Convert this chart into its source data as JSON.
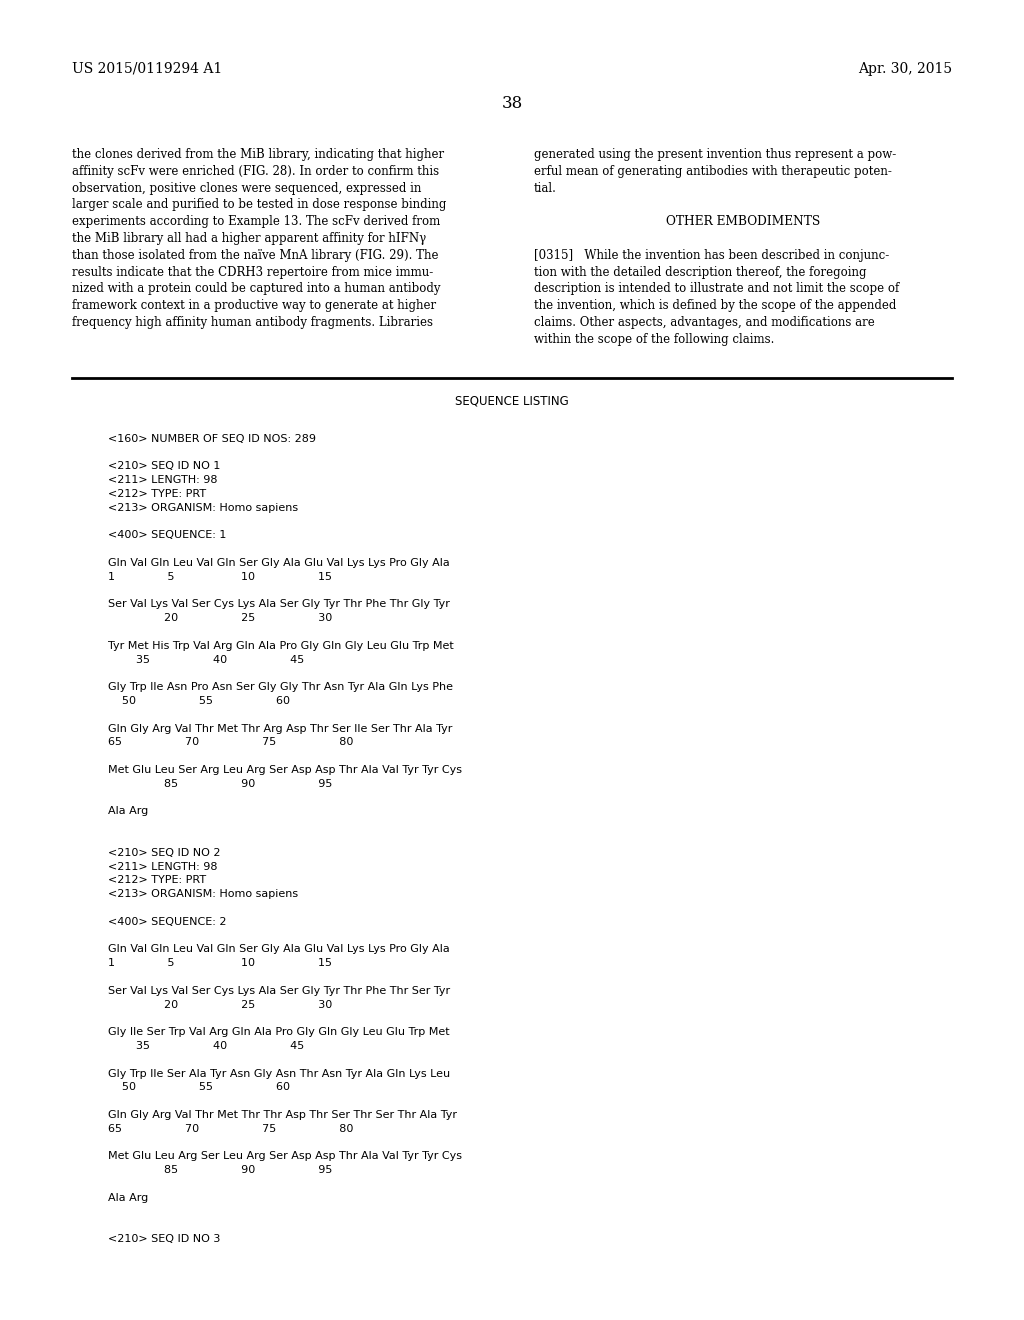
{
  "bg_color": "#ffffff",
  "header_left": "US 2015/0119294 A1",
  "header_right": "Apr. 30, 2015",
  "page_number": "38",
  "left_col_text": [
    "the clones derived from the MiB library, indicating that higher",
    "affinity scFv were enriched (FIG. 28). In order to confirm this",
    "observation, positive clones were sequenced, expressed in",
    "larger scale and purified to be tested in dose response binding",
    "experiments according to Example 13. The scFv derived from",
    "the MiB library all had a higher apparent affinity for hIFNγ",
    "than those isolated from the naïve MnA library (FIG. 29). The",
    "results indicate that the CDRH3 repertoire from mice immu-",
    "nized with a protein could be captured into a human antibody",
    "framework context in a productive way to generate at higher",
    "frequency high affinity human antibody fragments. Libraries"
  ],
  "right_col_text": [
    "generated using the present invention thus represent a pow-",
    "erful mean of generating antibodies with therapeutic poten-",
    "tial.",
    "",
    "OTHER EMBODIMENTS",
    "",
    "[0315]   While the invention has been described in conjunc-",
    "tion with the detailed description thereof, the foregoing",
    "description is intended to illustrate and not limit the scope of",
    "the invention, which is defined by the scope of the appended",
    "claims. Other aspects, advantages, and modifications are",
    "within the scope of the following claims."
  ],
  "seq_listing_title": "SEQUENCE LISTING",
  "seq_lines": [
    "",
    "<160> NUMBER OF SEQ ID NOS: 289",
    "",
    "<210> SEQ ID NO 1",
    "<211> LENGTH: 98",
    "<212> TYPE: PRT",
    "<213> ORGANISM: Homo sapiens",
    "",
    "<400> SEQUENCE: 1",
    "",
    "Gln Val Gln Leu Val Gln Ser Gly Ala Glu Val Lys Lys Pro Gly Ala",
    "1               5                   10                  15",
    "",
    "Ser Val Lys Val Ser Cys Lys Ala Ser Gly Tyr Thr Phe Thr Gly Tyr",
    "                20                  25                  30",
    "",
    "Tyr Met His Trp Val Arg Gln Ala Pro Gly Gln Gly Leu Glu Trp Met",
    "        35                  40                  45",
    "",
    "Gly Trp Ile Asn Pro Asn Ser Gly Gly Thr Asn Tyr Ala Gln Lys Phe",
    "    50                  55                  60",
    "",
    "Gln Gly Arg Val Thr Met Thr Arg Asp Thr Ser Ile Ser Thr Ala Tyr",
    "65                  70                  75                  80",
    "",
    "Met Glu Leu Ser Arg Leu Arg Ser Asp Asp Thr Ala Val Tyr Tyr Cys",
    "                85                  90                  95",
    "",
    "Ala Arg",
    "",
    "",
    "<210> SEQ ID NO 2",
    "<211> LENGTH: 98",
    "<212> TYPE: PRT",
    "<213> ORGANISM: Homo sapiens",
    "",
    "<400> SEQUENCE: 2",
    "",
    "Gln Val Gln Leu Val Gln Ser Gly Ala Glu Val Lys Lys Pro Gly Ala",
    "1               5                   10                  15",
    "",
    "Ser Val Lys Val Ser Cys Lys Ala Ser Gly Tyr Thr Phe Thr Ser Tyr",
    "                20                  25                  30",
    "",
    "Gly Ile Ser Trp Val Arg Gln Ala Pro Gly Gln Gly Leu Glu Trp Met",
    "        35                  40                  45",
    "",
    "Gly Trp Ile Ser Ala Tyr Asn Gly Asn Thr Asn Tyr Ala Gln Lys Leu",
    "    50                  55                  60",
    "",
    "Gln Gly Arg Val Thr Met Thr Thr Asp Thr Ser Thr Ser Thr Ala Tyr",
    "65                  70                  75                  80",
    "",
    "Met Glu Leu Arg Ser Leu Arg Ser Asp Asp Thr Ala Val Tyr Tyr Cys",
    "                85                  90                  95",
    "",
    "Ala Arg",
    "",
    "",
    "<210> SEQ ID NO 3"
  ]
}
